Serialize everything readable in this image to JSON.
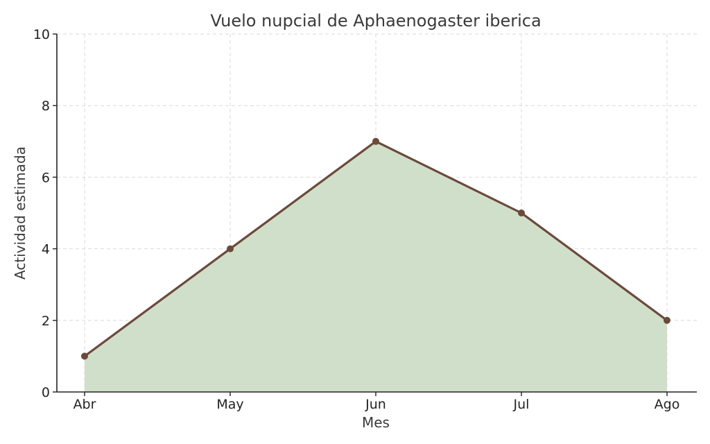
{
  "chart_data": {
    "type": "area",
    "title": "Vuelo nupcial de Aphaenogaster iberica",
    "xlabel": "Mes",
    "ylabel": "Actividad estimada",
    "categories": [
      "Abr",
      "May",
      "Jun",
      "Jul",
      "Ago"
    ],
    "values": [
      1,
      4,
      7,
      5,
      2
    ],
    "ylim": [
      0,
      10
    ],
    "yticks": [
      0,
      2,
      4,
      6,
      8,
      10
    ],
    "grid": true,
    "markers": true,
    "colors": {
      "line": "#6b4a3a",
      "fill": "#d0dfca",
      "marker": "#6b4a3a"
    }
  }
}
